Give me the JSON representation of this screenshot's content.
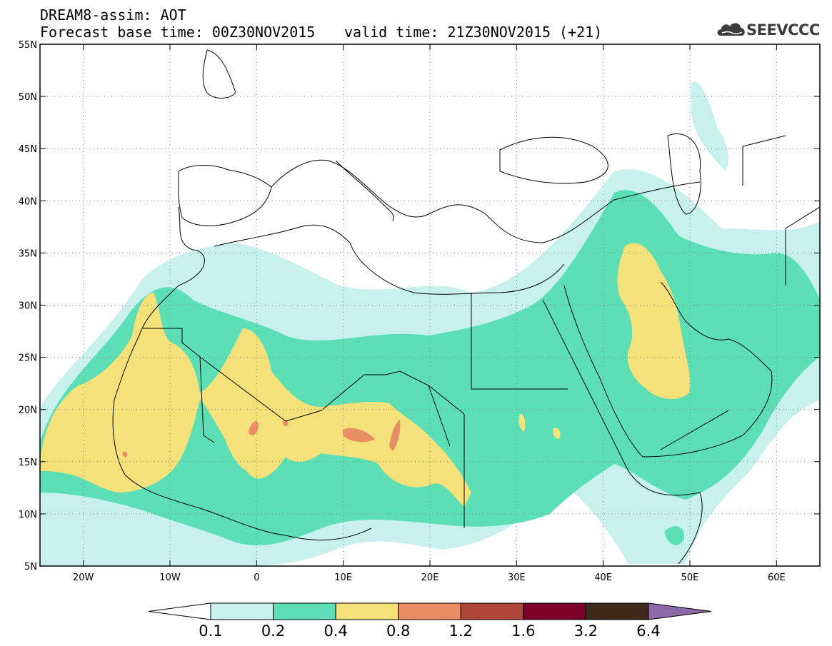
{
  "header": {
    "line1": "DREAM8-assim: AOT",
    "base_time": "Forecast base time: 00Z30NOV2015",
    "valid_time": "valid time: 21Z30NOV2015 (+21)",
    "logo_text": "SEEVCCC",
    "logo_icon": "cloud-icon"
  },
  "map": {
    "lon_range": [
      -25,
      65
    ],
    "lat_range": [
      5,
      55
    ],
    "lon_labels": [
      {
        "lon": -20,
        "label": "20W"
      },
      {
        "lon": -10,
        "label": "10W"
      },
      {
        "lon": 0,
        "label": "0"
      },
      {
        "lon": 10,
        "label": "10E"
      },
      {
        "lon": 20,
        "label": "20E"
      },
      {
        "lon": 30,
        "label": "30E"
      },
      {
        "lon": 40,
        "label": "40E"
      },
      {
        "lon": 50,
        "label": "50E"
      },
      {
        "lon": 60,
        "label": "60E"
      }
    ],
    "lat_labels": [
      {
        "lat": 55,
        "label": "55N"
      },
      {
        "lat": 50,
        "label": "50N"
      },
      {
        "lat": 45,
        "label": "45N"
      },
      {
        "lat": 40,
        "label": "40N"
      },
      {
        "lat": 35,
        "label": "35N"
      },
      {
        "lat": 30,
        "label": "30N"
      },
      {
        "lat": 25,
        "label": "25N"
      },
      {
        "lat": 20,
        "label": "20N"
      },
      {
        "lat": 15,
        "label": "15N"
      },
      {
        "lat": 10,
        "label": "10N"
      },
      {
        "lat": 5,
        "label": "5N"
      }
    ]
  },
  "colorbar": {
    "colors": [
      "#c8f0ec",
      "#5ddfb6",
      "#f5e17a",
      "#e88d64",
      "#b0463a",
      "#7a0028",
      "#3d2a18"
    ],
    "under_color": "#ffffff",
    "over_color": "#8c6aa8",
    "labels": [
      "0.1",
      "0.2",
      "0.4",
      "0.8",
      "1.2",
      "1.6",
      "3.2",
      "6.4"
    ]
  }
}
